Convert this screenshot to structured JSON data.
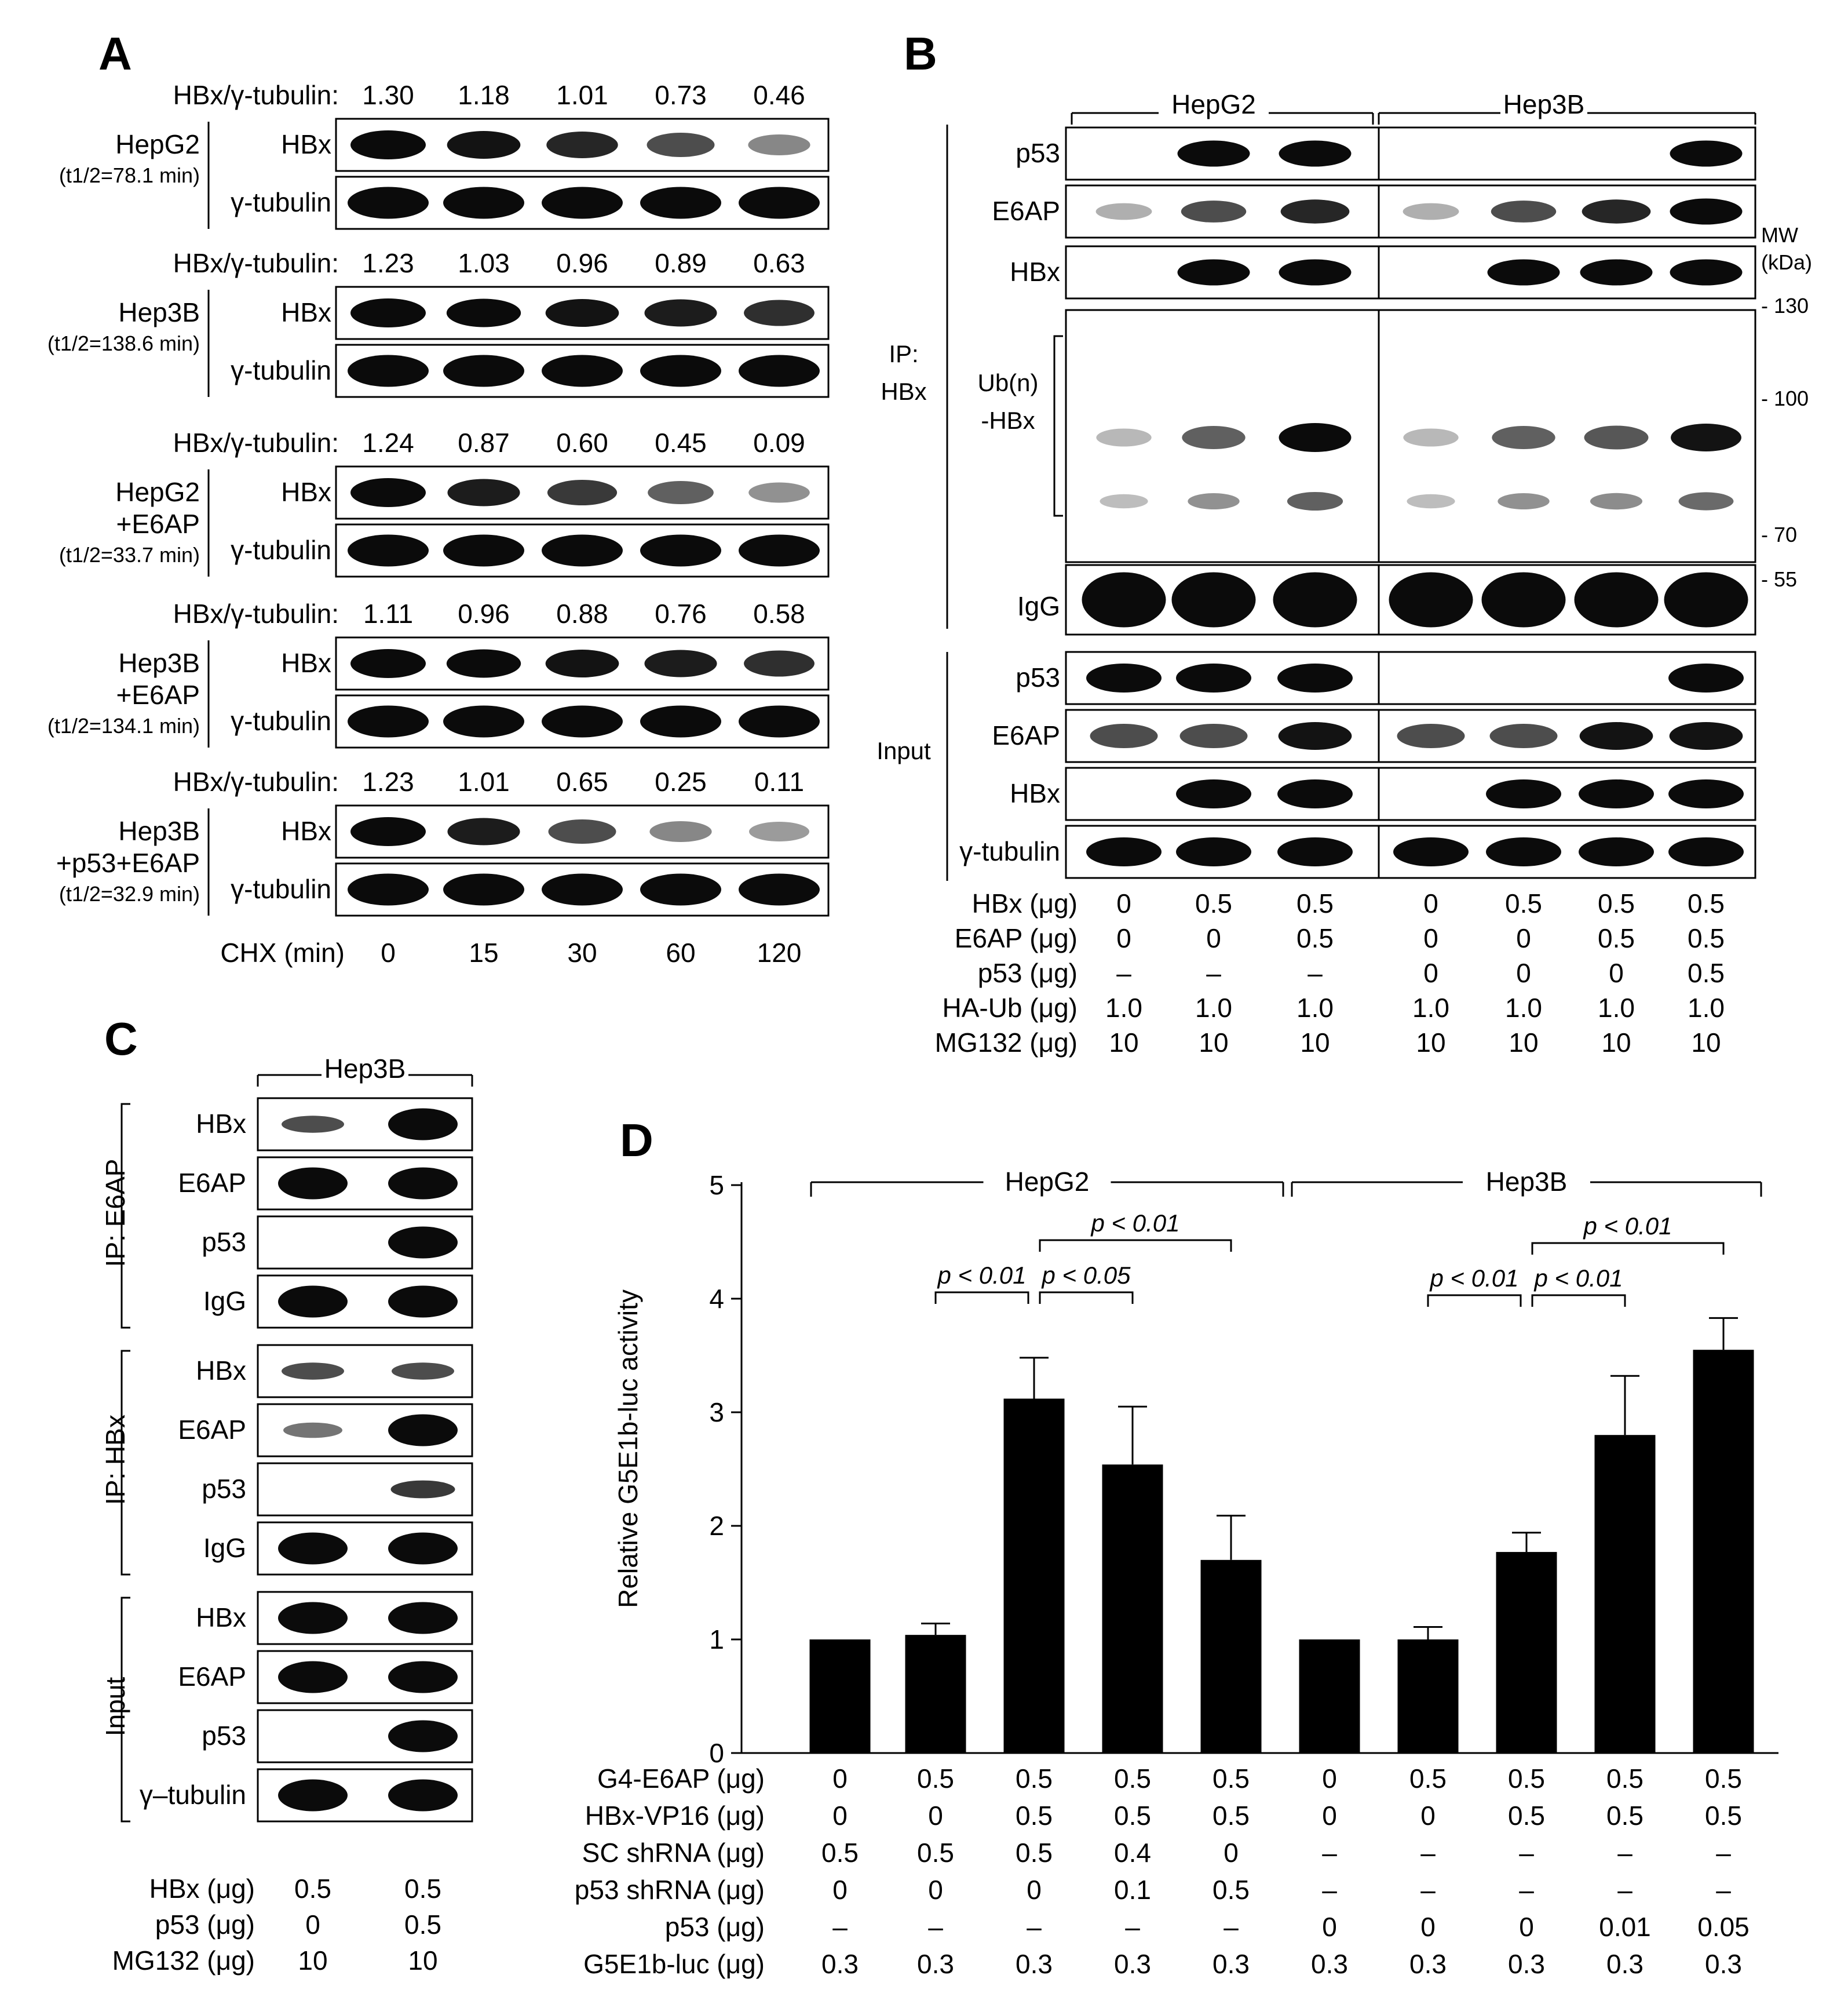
{
  "panel_labels": {
    "a": "A",
    "b": "B",
    "c": "C",
    "d": "D"
  },
  "A": {
    "ratio_label": "HBx/γ-tubulin:",
    "band_labels": {
      "hbx": "HBx",
      "tubulin": "γ-tubulin"
    },
    "blocks": [
      {
        "cell": "HepG2",
        "extra": [],
        "half_life": "(t1/2=78.1 min)",
        "ratios": [
          "1.30",
          "1.18",
          "1.01",
          "0.73",
          "0.46"
        ],
        "hbx_levels": [
          1.0,
          0.9,
          0.8,
          0.6,
          0.3
        ]
      },
      {
        "cell": "Hep3B",
        "extra": [],
        "half_life": "(t1/2=138.6 min)",
        "ratios": [
          "1.23",
          "1.03",
          "0.96",
          "0.89",
          "0.63"
        ],
        "hbx_levels": [
          1.0,
          0.95,
          0.9,
          0.85,
          0.75
        ]
      },
      {
        "cell": "HepG2",
        "extra": [
          "+E6AP"
        ],
        "half_life": "(t1/2=33.7 min)",
        "ratios": [
          "1.24",
          "0.87",
          "0.60",
          "0.45",
          "0.09"
        ],
        "hbx_levels": [
          1.0,
          0.85,
          0.7,
          0.5,
          0.25
        ]
      },
      {
        "cell": "Hep3B",
        "extra": [
          "+E6AP"
        ],
        "half_life": "(t1/2=134.1 min)",
        "ratios": [
          "1.11",
          "0.96",
          "0.88",
          "0.76",
          "0.58"
        ],
        "hbx_levels": [
          1.0,
          0.95,
          0.9,
          0.85,
          0.75
        ]
      },
      {
        "cell": "Hep3B",
        "extra": [
          "+p53+E6AP"
        ],
        "half_life": "(t1/2=32.9 min)",
        "ratios": [
          "1.23",
          "1.01",
          "0.65",
          "0.25",
          "0.11"
        ],
        "hbx_levels": [
          1.0,
          0.85,
          0.6,
          0.3,
          0.2
        ]
      }
    ],
    "chx_label": "CHX (min)",
    "chx_values": [
      "0",
      "15",
      "30",
      "60",
      "120"
    ]
  },
  "B": {
    "groups": [
      "HepG2",
      "Hep3B"
    ],
    "ip_label": [
      "IP:",
      "HBx"
    ],
    "ub_label": [
      "Ub(n)",
      "-HBx"
    ],
    "input_label": "Input",
    "mw_label": [
      "MW",
      "(kDa)"
    ],
    "mw_markers": [
      "- 130",
      "- 100",
      "- 70",
      "- 55"
    ],
    "ip_rows": [
      {
        "name": "p53",
        "levels": [
          0,
          1,
          1,
          0,
          0,
          0,
          1
        ]
      },
      {
        "name": "E6AP",
        "levels": [
          0.1,
          0.6,
          0.8,
          0.1,
          0.6,
          0.8,
          1
        ]
      },
      {
        "name": "HBx",
        "levels": [
          0,
          1,
          1,
          0,
          1,
          1,
          1
        ]
      }
    ],
    "igg_label": "IgG",
    "input_rows": [
      {
        "name": "p53",
        "levels": [
          1,
          1,
          1,
          0,
          0,
          0,
          1
        ]
      },
      {
        "name": "E6AP",
        "levels": [
          0.6,
          0.6,
          0.9,
          0.6,
          0.6,
          0.9,
          0.9
        ]
      },
      {
        "name": "HBx",
        "levels": [
          0,
          1,
          1,
          0,
          1,
          1,
          1
        ]
      },
      {
        "name": "γ-tubulin",
        "levels": [
          1,
          1,
          1,
          1,
          1,
          1,
          1
        ]
      }
    ],
    "treatments": [
      {
        "label": "HBx (μg)",
        "values": [
          "0",
          "0.5",
          "0.5",
          "0",
          "0.5",
          "0.5",
          "0.5"
        ]
      },
      {
        "label": "E6AP (μg)",
        "values": [
          "0",
          "0",
          "0.5",
          "0",
          "0",
          "0.5",
          "0.5"
        ]
      },
      {
        "label": "p53 (μg)",
        "values": [
          "–",
          "–",
          "–",
          "0",
          "0",
          "0",
          "0.5"
        ]
      },
      {
        "label": "HA-Ub (μg)",
        "values": [
          "1.0",
          "1.0",
          "1.0",
          "1.0",
          "1.0",
          "1.0",
          "1.0"
        ]
      },
      {
        "label": "MG132 (μg)",
        "values": [
          "10",
          "10",
          "10",
          "10",
          "10",
          "10",
          "10"
        ]
      }
    ]
  },
  "C": {
    "group": "Hep3B",
    "sections": [
      {
        "label": "IP: E6AP",
        "rows": [
          {
            "name": "HBx",
            "levels": [
              0.6,
              1
            ]
          },
          {
            "name": "E6AP",
            "levels": [
              1,
              1
            ]
          },
          {
            "name": "p53",
            "levels": [
              0,
              1
            ]
          },
          {
            "name": "IgG",
            "levels": [
              1,
              1
            ]
          }
        ]
      },
      {
        "label": "IP: HBx",
        "rows": [
          {
            "name": "HBx",
            "levels": [
              0.6,
              0.6
            ]
          },
          {
            "name": "E6AP",
            "levels": [
              0.4,
              1
            ]
          },
          {
            "name": "p53",
            "levels": [
              0,
              0.7
            ]
          },
          {
            "name": "IgG",
            "levels": [
              1,
              1
            ]
          }
        ]
      },
      {
        "label": "Input",
        "rows": [
          {
            "name": "HBx",
            "levels": [
              1,
              1
            ]
          },
          {
            "name": "E6AP",
            "levels": [
              1,
              1
            ]
          },
          {
            "name": "p53",
            "levels": [
              0,
              1
            ]
          },
          {
            "name": "γ–tubulin",
            "levels": [
              1,
              1
            ]
          }
        ]
      }
    ],
    "treatments": [
      {
        "label": "HBx (μg)",
        "values": [
          "0.5",
          "0.5"
        ]
      },
      {
        "label": "p53 (μg)",
        "values": [
          "0",
          "0.5"
        ]
      },
      {
        "label": "MG132 (μg)",
        "values": [
          "10",
          "10"
        ]
      }
    ]
  },
  "chart_data": {
    "type": "bar",
    "ylabel": "Relative G5E1b-luc activity",
    "ylim": [
      0,
      5
    ],
    "yticks": [
      "0",
      "1",
      "2",
      "3",
      "4",
      "5"
    ],
    "groups": [
      "HepG2",
      "Hep3B"
    ],
    "values": [
      1.0,
      1.04,
      3.12,
      2.54,
      1.7,
      1.0,
      1.0,
      1.77,
      2.8,
      3.55
    ],
    "errors": [
      0,
      0.1,
      0.36,
      0.51,
      0.39,
      0,
      0.11,
      0.17,
      0.52,
      0.28
    ],
    "pvalues": [
      "p < 0.01",
      "p < 0.05",
      "p < 0.01",
      "p < 0.01",
      "p < 0.01",
      "p < 0.01"
    ],
    "treatments": [
      {
        "label": "G4-E6AP (μg)",
        "values": [
          "0",
          "0.5",
          "0.5",
          "0.5",
          "0.5",
          "0",
          "0.5",
          "0.5",
          "0.5",
          "0.5"
        ]
      },
      {
        "label": "HBx-VP16 (μg)",
        "values": [
          "0",
          "0",
          "0.5",
          "0.5",
          "0.5",
          "0",
          "0",
          "0.5",
          "0.5",
          "0.5"
        ]
      },
      {
        "label": "SC shRNA (μg)",
        "values": [
          "0.5",
          "0.5",
          "0.5",
          "0.4",
          "0",
          "–",
          "–",
          "–",
          "–",
          "–"
        ]
      },
      {
        "label": "p53 shRNA (μg)",
        "values": [
          "0",
          "0",
          "0",
          "0.1",
          "0.5",
          "–",
          "–",
          "–",
          "–",
          "–"
        ]
      },
      {
        "label": "p53 (μg)",
        "values": [
          "–",
          "–",
          "–",
          "–",
          "–",
          "0",
          "0",
          "0",
          "0.01",
          "0.05"
        ]
      },
      {
        "label": "G5E1b-luc (μg)",
        "values": [
          "0.3",
          "0.3",
          "0.3",
          "0.3",
          "0.3",
          "0.3",
          "0.3",
          "0.3",
          "0.3",
          "0.3"
        ]
      }
    ]
  }
}
